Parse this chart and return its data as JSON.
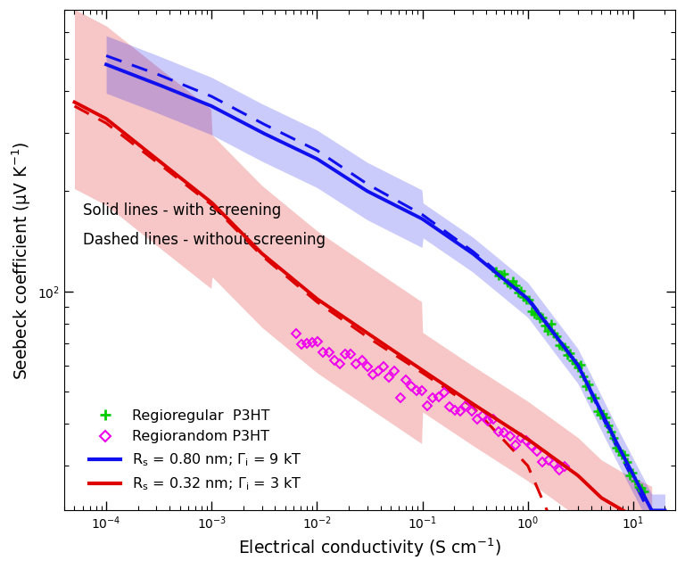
{
  "xlim": [
    4e-05,
    25
  ],
  "ylim": [
    22,
    700
  ],
  "xlabel": "Electrical conductivity (S cm$^{-1}$)",
  "ylabel": "Seebeck coefficient (μV K$^{-1}$)",
  "annotation_line1": "Solid lines - with screening",
  "annotation_line2": "Dashed lines - without screening",
  "blue_color": "#1010ee",
  "red_color": "#dd0000",
  "green_color": "#00cc00",
  "magenta_color": "#ee00ee",
  "blue_fill_alpha": 0.22,
  "red_fill_alpha": 0.22,
  "lw_main": 2.5,
  "lw_dashed": 2.2
}
